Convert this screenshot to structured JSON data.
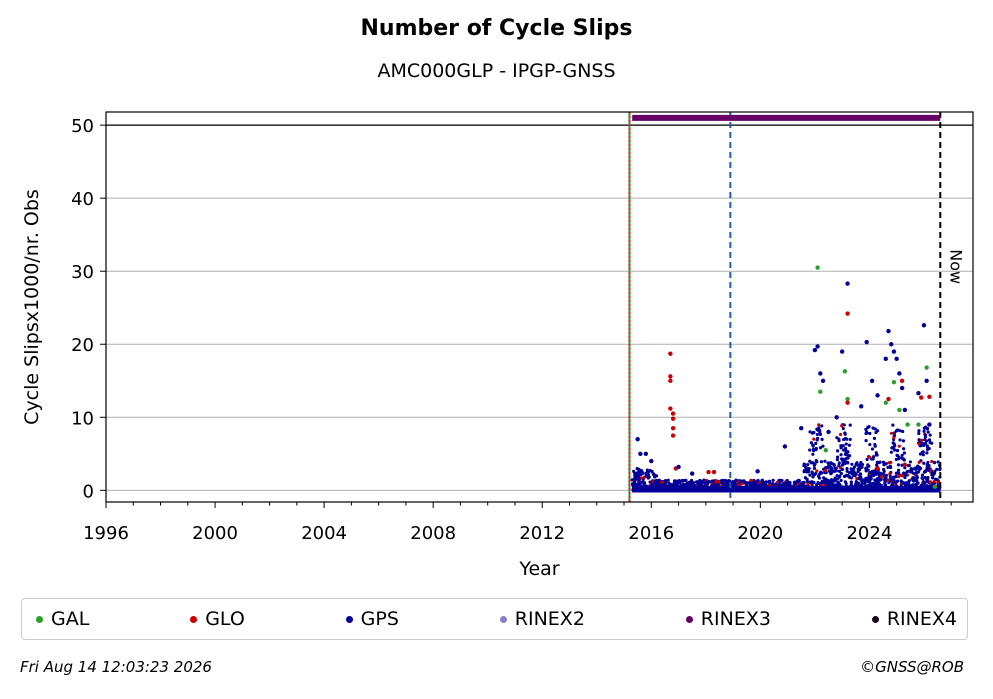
{
  "footer": {
    "timestamp": "Fri Aug 14 12:03:23 2026",
    "copyright": "©GNSS@ROB"
  },
  "chart_data": {
    "type": "scatter",
    "title": "Number of Cycle Slips",
    "subtitle": "AMC000GLP - IPGP-GNSS",
    "xlabel": "Year",
    "ylabel": "Cycle Slipsx1000/nr. Obs",
    "xlim": [
      1996,
      2027.8
    ],
    "ylim": [
      -1.6,
      51.8
    ],
    "xticks": [
      1996,
      2000,
      2004,
      2008,
      2012,
      2016,
      2020,
      2024
    ],
    "yticks": [
      0,
      10,
      20,
      30,
      40,
      50
    ],
    "grid": "horizontal",
    "legend_position": "bottom",
    "reference_lines": [
      {
        "x": 2015.2,
        "color": "#2ca02c",
        "style": "solid"
      },
      {
        "x": 2015.2,
        "color": "#d62728",
        "style": "dotted"
      },
      {
        "x": 2018.9,
        "color": "#1f5fa8",
        "style": "dashed"
      },
      {
        "x": 2026.6,
        "color": "#000000",
        "style": "dashed",
        "label": "Now"
      }
    ],
    "hline": 50,
    "rinex_bar": {
      "start": 2015.3,
      "end": 2026.6,
      "y": 51,
      "color": "#660066"
    },
    "series": [
      {
        "name": "GAL",
        "color": "#2ca02c",
        "points": [
          [
            2022.1,
            30.5
          ],
          [
            2022.2,
            13.5
          ],
          [
            2022.4,
            5.5
          ],
          [
            2023.1,
            16.3
          ],
          [
            2023.2,
            12.5
          ],
          [
            2024.6,
            12.0
          ],
          [
            2024.9,
            14.8
          ],
          [
            2025.1,
            11.0
          ],
          [
            2025.4,
            9.0
          ],
          [
            2025.8,
            9.0
          ],
          [
            2026.1,
            16.8
          ],
          [
            2026.4,
            0.5
          ]
        ]
      },
      {
        "name": "GLO",
        "color": "#cc0000",
        "points": [
          [
            2016.7,
            18.7
          ],
          [
            2016.7,
            15.6
          ],
          [
            2016.7,
            15.0
          ],
          [
            2016.7,
            11.2
          ],
          [
            2016.8,
            10.5
          ],
          [
            2016.8,
            9.8
          ],
          [
            2016.8,
            8.5
          ],
          [
            2016.8,
            7.5
          ],
          [
            2016.9,
            3.0
          ],
          [
            2018.1,
            2.5
          ],
          [
            2018.3,
            2.5
          ],
          [
            2018.4,
            1.2
          ],
          [
            2023.2,
            24.2
          ],
          [
            2023.2,
            12.0
          ],
          [
            2024.7,
            12.5
          ],
          [
            2025.2,
            15.0
          ],
          [
            2025.9,
            12.7
          ],
          [
            2026.2,
            12.8
          ],
          [
            2025.3,
            3.5
          ],
          [
            2024.3,
            3.0
          ]
        ]
      },
      {
        "name": "GPS",
        "color": "#000099",
        "points": [
          [
            2015.5,
            7.0
          ],
          [
            2015.6,
            5.0
          ],
          [
            2015.8,
            5.0
          ],
          [
            2016.0,
            4.0
          ],
          [
            2017.0,
            3.2
          ],
          [
            2017.5,
            2.3
          ],
          [
            2019.9,
            2.6
          ],
          [
            2020.9,
            6.0
          ],
          [
            2021.5,
            8.5
          ],
          [
            2022.0,
            19.2
          ],
          [
            2022.1,
            19.7
          ],
          [
            2022.2,
            16.0
          ],
          [
            2022.3,
            15.0
          ],
          [
            2022.5,
            8.0
          ],
          [
            2022.8,
            10.0
          ],
          [
            2023.0,
            19.0
          ],
          [
            2023.2,
            28.3
          ],
          [
            2023.7,
            11.5
          ],
          [
            2023.9,
            20.3
          ],
          [
            2024.1,
            15.0
          ],
          [
            2024.3,
            13.0
          ],
          [
            2024.6,
            18.0
          ],
          [
            2024.7,
            21.8
          ],
          [
            2024.8,
            20.0
          ],
          [
            2024.9,
            19.0
          ],
          [
            2025.0,
            18.0
          ],
          [
            2025.1,
            16.0
          ],
          [
            2025.2,
            14.0
          ],
          [
            2025.3,
            11.0
          ],
          [
            2025.8,
            13.3
          ],
          [
            2026.0,
            22.6
          ],
          [
            2026.1,
            15.0
          ],
          [
            2026.2,
            9.0
          ]
        ]
      },
      {
        "name": "RINEX2",
        "color": "#8c7fc4",
        "points": []
      },
      {
        "name": "RINEX3",
        "color": "#660066",
        "points": []
      },
      {
        "name": "RINEX4",
        "color": "#1a0022",
        "points": []
      }
    ]
  }
}
